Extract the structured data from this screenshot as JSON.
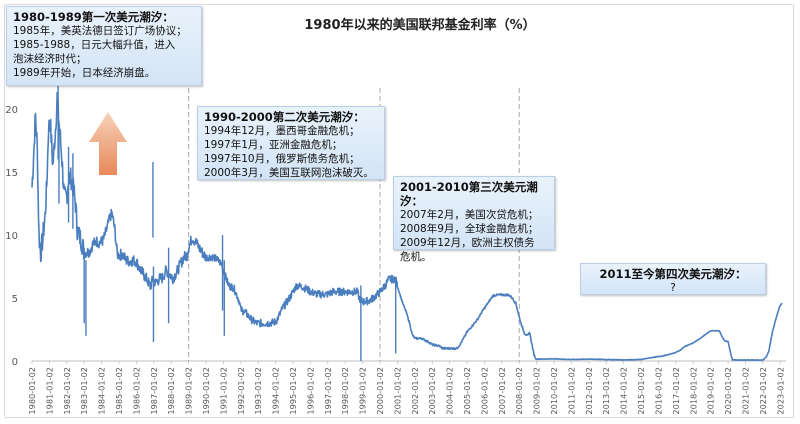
{
  "chart_data": {
    "type": "line",
    "title": "1980年以来的美国联邦基金利率（%）",
    "ylim": [
      0,
      22
    ],
    "y_ticks": [
      "0",
      "5",
      "10",
      "15",
      "20"
    ],
    "x_tick_labels": [
      "1980-01-02",
      "1981-01-02",
      "1982-01-02",
      "1983-01-02",
      "1984-01-02",
      "1985-01-02",
      "1986-01-02",
      "1987-01-02",
      "1988-01-02",
      "1989-01-02",
      "1990-01-02",
      "1991-01-02",
      "1992-01-02",
      "1993-01-02",
      "1994-01-02",
      "1995-01-02",
      "1996-01-02",
      "1997-01-02",
      "1998-01-02",
      "1999-01-02",
      "2000-01-02",
      "2001-01-02",
      "2002-01-02",
      "2003-01-02",
      "2004-01-02",
      "2005-01-02",
      "2006-01-02",
      "2007-01-02",
      "2008-01-02",
      "2009-01-02",
      "2010-01-02",
      "2011-01-02",
      "2012-01-02",
      "2013-01-02",
      "2014-01-02",
      "2015-01-02",
      "2016-01-02",
      "2017-01-02",
      "2018-01-02",
      "2019-01-02",
      "2020-01-02",
      "2021-01-02",
      "2022-01-02",
      "2023-01-02"
    ],
    "series": [
      {
        "color": "#4a7ebf",
        "points": [
          [
            1980.0,
            13.8
          ],
          [
            1980.1,
            16.5
          ],
          [
            1980.2,
            19.5
          ],
          [
            1980.3,
            17.0
          ],
          [
            1980.4,
            10.0
          ],
          [
            1980.5,
            8.5
          ],
          [
            1980.6,
            9.5
          ],
          [
            1980.75,
            11.5
          ],
          [
            1980.85,
            14.0
          ],
          [
            1980.95,
            18.5
          ],
          [
            1981.05,
            19.0
          ],
          [
            1981.2,
            15.5
          ],
          [
            1981.35,
            18.5
          ],
          [
            1981.45,
            21.0
          ],
          [
            1981.55,
            19.0
          ],
          [
            1981.7,
            16.5
          ],
          [
            1981.85,
            13.0
          ],
          [
            1982.0,
            13.0
          ],
          [
            1982.1,
            14.5
          ],
          [
            1982.25,
            14.5
          ],
          [
            1982.4,
            13.5
          ],
          [
            1982.5,
            12.5
          ],
          [
            1982.6,
            10.5
          ],
          [
            1982.7,
            10.0
          ],
          [
            1982.85,
            9.5
          ],
          [
            1983.0,
            8.6
          ],
          [
            1983.3,
            8.7
          ],
          [
            1983.5,
            9.3
          ],
          [
            1983.7,
            9.5
          ],
          [
            1983.9,
            9.4
          ],
          [
            1984.1,
            9.6
          ],
          [
            1984.3,
            10.5
          ],
          [
            1984.5,
            11.5
          ],
          [
            1984.6,
            11.7
          ],
          [
            1984.75,
            10.5
          ],
          [
            1984.9,
            8.5
          ],
          [
            1985.0,
            8.4
          ],
          [
            1985.2,
            8.5
          ],
          [
            1985.4,
            8.0
          ],
          [
            1985.6,
            7.9
          ],
          [
            1985.8,
            8.0
          ],
          [
            1986.0,
            7.9
          ],
          [
            1986.2,
            7.3
          ],
          [
            1986.4,
            6.9
          ],
          [
            1986.6,
            6.5
          ],
          [
            1986.8,
            5.9
          ],
          [
            1986.95,
            6.5
          ],
          [
            1987.1,
            6.2
          ],
          [
            1987.3,
            6.5
          ],
          [
            1987.5,
            6.6
          ],
          [
            1987.7,
            7.2
          ],
          [
            1987.9,
            6.9
          ],
          [
            1988.1,
            6.6
          ],
          [
            1988.3,
            7.0
          ],
          [
            1988.5,
            7.6
          ],
          [
            1988.7,
            8.2
          ],
          [
            1988.9,
            8.4
          ],
          [
            1989.0,
            9.0
          ],
          [
            1989.2,
            9.8
          ],
          [
            1989.4,
            9.5
          ],
          [
            1989.6,
            9.0
          ],
          [
            1989.8,
            8.6
          ],
          [
            1990.0,
            8.2
          ],
          [
            1990.3,
            8.3
          ],
          [
            1990.6,
            8.1
          ],
          [
            1990.9,
            7.7
          ],
          [
            1991.0,
            7.2
          ],
          [
            1991.3,
            6.0
          ],
          [
            1991.6,
            5.8
          ],
          [
            1991.9,
            4.8
          ],
          [
            1992.0,
            4.1
          ],
          [
            1992.3,
            3.8
          ],
          [
            1992.6,
            3.3
          ],
          [
            1992.9,
            3.0
          ],
          [
            1993.2,
            3.0
          ],
          [
            1993.6,
            3.0
          ],
          [
            1994.0,
            3.1
          ],
          [
            1994.2,
            3.6
          ],
          [
            1994.4,
            4.2
          ],
          [
            1994.6,
            4.6
          ],
          [
            1994.8,
            5.0
          ],
          [
            1995.0,
            5.5
          ],
          [
            1995.2,
            6.0
          ],
          [
            1995.5,
            5.9
          ],
          [
            1995.8,
            5.7
          ],
          [
            1996.0,
            5.5
          ],
          [
            1996.4,
            5.3
          ],
          [
            1996.8,
            5.3
          ],
          [
            1997.0,
            5.3
          ],
          [
            1997.3,
            5.5
          ],
          [
            1997.7,
            5.5
          ],
          [
            1998.0,
            5.5
          ],
          [
            1998.4,
            5.5
          ],
          [
            1998.7,
            5.5
          ],
          [
            1998.8,
            5.0
          ],
          [
            1999.0,
            4.7
          ],
          [
            1999.4,
            4.8
          ],
          [
            1999.7,
            5.1
          ],
          [
            2000.0,
            5.5
          ],
          [
            2000.3,
            6.0
          ],
          [
            2000.5,
            6.5
          ],
          [
            2000.9,
            6.5
          ],
          [
            2001.0,
            5.9
          ],
          [
            2001.1,
            5.5
          ],
          [
            2001.3,
            4.6
          ],
          [
            2001.5,
            3.9
          ],
          [
            2001.7,
            3.0
          ],
          [
            2001.85,
            2.1
          ],
          [
            2002.0,
            1.8
          ],
          [
            2002.4,
            1.8
          ],
          [
            2002.8,
            1.5
          ],
          [
            2003.0,
            1.3
          ],
          [
            2003.4,
            1.2
          ],
          [
            2003.6,
            1.0
          ],
          [
            2004.0,
            1.0
          ],
          [
            2004.4,
            1.0
          ],
          [
            2004.6,
            1.3
          ],
          [
            2004.8,
            1.8
          ],
          [
            2005.0,
            2.3
          ],
          [
            2005.3,
            2.8
          ],
          [
            2005.6,
            3.3
          ],
          [
            2005.9,
            4.0
          ],
          [
            2006.2,
            4.6
          ],
          [
            2006.5,
            5.2
          ],
          [
            2006.8,
            5.25
          ],
          [
            2007.0,
            5.25
          ],
          [
            2007.4,
            5.25
          ],
          [
            2007.6,
            5.0
          ],
          [
            2007.8,
            4.6
          ],
          [
            2008.0,
            3.5
          ],
          [
            2008.1,
            3.0
          ],
          [
            2008.3,
            2.2
          ],
          [
            2008.5,
            2.0
          ],
          [
            2008.6,
            2.3
          ],
          [
            2008.7,
            1.5
          ],
          [
            2008.85,
            0.5
          ],
          [
            2008.95,
            0.15
          ],
          [
            2009.0,
            0.15
          ],
          [
            2010.0,
            0.17
          ],
          [
            2011.0,
            0.12
          ],
          [
            2012.0,
            0.15
          ],
          [
            2013.0,
            0.12
          ],
          [
            2014.0,
            0.09
          ],
          [
            2015.0,
            0.12
          ],
          [
            2015.95,
            0.35
          ],
          [
            2016.2,
            0.38
          ],
          [
            2016.95,
            0.65
          ],
          [
            2017.3,
            0.9
          ],
          [
            2017.5,
            1.15
          ],
          [
            2017.95,
            1.4
          ],
          [
            2018.3,
            1.7
          ],
          [
            2018.5,
            1.9
          ],
          [
            2018.8,
            2.2
          ],
          [
            2019.0,
            2.4
          ],
          [
            2019.5,
            2.4
          ],
          [
            2019.6,
            2.1
          ],
          [
            2019.8,
            1.6
          ],
          [
            2020.0,
            1.55
          ],
          [
            2020.15,
            0.6
          ],
          [
            2020.25,
            0.08
          ],
          [
            2021.0,
            0.08
          ],
          [
            2022.0,
            0.08
          ],
          [
            2022.2,
            0.33
          ],
          [
            2022.35,
            0.8
          ],
          [
            2022.45,
            1.6
          ],
          [
            2022.55,
            2.3
          ],
          [
            2022.7,
            3.1
          ],
          [
            2022.85,
            3.8
          ],
          [
            2022.95,
            4.3
          ],
          [
            2023.1,
            4.6
          ]
        ]
      }
    ],
    "vlines": [
      1989.0,
      2000.0,
      2008.0
    ],
    "spikes": [
      [
        1981.5,
        22.0
      ],
      [
        1981.55,
        18.5
      ],
      [
        1982.35,
        16.5
      ],
      [
        1982.1,
        17.0
      ],
      [
        1983.0,
        9.0
      ],
      [
        1983.1,
        8.0
      ],
      [
        1986.95,
        15.8
      ],
      [
        1986.98,
        7.5
      ],
      [
        1987.85,
        9.0
      ],
      [
        1990.95,
        10.0
      ],
      [
        1991.05,
        8.0
      ],
      [
        1998.9,
        6.0
      ],
      [
        2000.9,
        6.6
      ]
    ]
  },
  "callouts": [
    {
      "header": "1980-1989第一次美元潮汐：",
      "lines": [
        "1985年，美英法德日签订广场协议；",
        "1985-1988，日元大幅升值，进入",
        "泡沫经济时代；",
        "1989年开始，日本经济崩盘。"
      ]
    },
    {
      "header": "1990-2000第二次美元潮汐：",
      "lines": [
        "1994年12月，墨西哥金融危机；",
        "1997年1月，亚洲金融危机；",
        "1997年10月，俄罗斯债务危机；",
        "2000年3月，美国互联网泡沫破灭。"
      ]
    },
    {
      "header": "2001-2010第三次美元潮汐：",
      "lines": [
        "2007年2月，美国次贷危机；",
        "2008年9月，全球金融危机；",
        "2009年12月，欧洲主权债务",
        "危机。"
      ]
    },
    {
      "header": "2011至今第四次美元潮汐：",
      "lines": [
        "?"
      ]
    }
  ],
  "colors": {
    "line": "#4a7ebf",
    "arrow_top": "#f6d2b9",
    "arrow_bottom": "#e8895a",
    "dashed": "#a6a6a6"
  }
}
